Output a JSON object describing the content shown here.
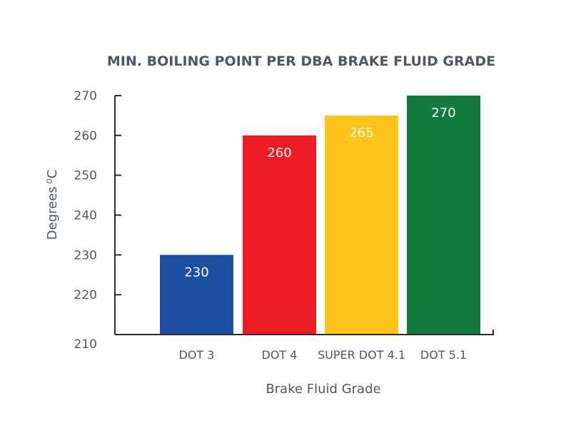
{
  "chart_data": {
    "type": "bar",
    "title": "MIN. BOILING POINT PER DBA BRAKE FLUID GRADE",
    "xlabel": "Brake Fluid Grade",
    "ylabel": "Degrees",
    "ylabel_superscript": "0",
    "ylabel_unit": "C",
    "categories": [
      "DOT 3",
      "DOT 4",
      "SUPER DOT 4.1",
      "DOT 5.1"
    ],
    "values": [
      230,
      260,
      265,
      270
    ],
    "value_labels": [
      "230",
      "260",
      "265",
      "270"
    ],
    "colors": [
      "#1c4fa0",
      "#ec1c24",
      "#fdc319",
      "#117a3d"
    ],
    "ylim": [
      210,
      270
    ],
    "yticks": [
      210,
      220,
      230,
      240,
      250,
      260,
      270
    ],
    "grid": false,
    "legend": "none",
    "text_color": "#4d5866",
    "axis_color": "#2b2b2b"
  }
}
